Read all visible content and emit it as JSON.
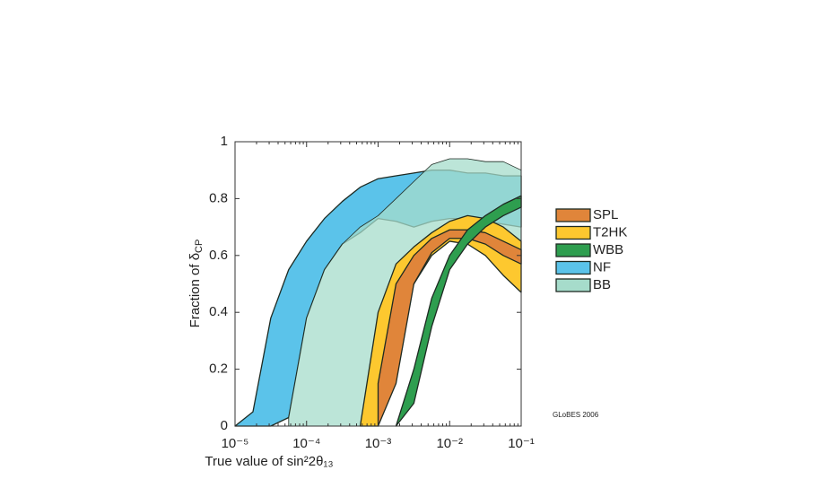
{
  "chart_data": {
    "type": "band",
    "log_x": true,
    "x_label": "True value of sin²2θ₁₃",
    "y_label": "Fraction of δ",
    "y_label_sub": "CP",
    "annotation": "GLoBES 2006",
    "x": [
      1e-05,
      1.78e-05,
      3.16e-05,
      5.62e-05,
      0.0001,
      0.000178,
      0.000316,
      0.000562,
      0.001,
      0.00178,
      0.00316,
      0.00562,
      0.01,
      0.0178,
      0.0316,
      0.0562,
      0.1
    ],
    "xlim": [
      1e-05,
      0.1
    ],
    "xticks": [
      {
        "value": 1e-05,
        "label": "10⁻⁵"
      },
      {
        "value": 0.0001,
        "label": "10⁻⁴"
      },
      {
        "value": 0.001,
        "label": "10⁻³"
      },
      {
        "value": 0.01,
        "label": "10⁻²"
      },
      {
        "value": 0.1,
        "label": "10⁻¹"
      }
    ],
    "ylim": [
      0,
      1
    ],
    "yticks": [
      0,
      0.2,
      0.4,
      0.6,
      0.8,
      1
    ],
    "series": [
      {
        "name": "NF",
        "color": "#5bc3ea",
        "lower": [
          0,
          0,
          0,
          0.03,
          0.38,
          0.55,
          0.64,
          0.68,
          0.73,
          0.72,
          0.7,
          0.72,
          0.73,
          0.73,
          0.72,
          0.71,
          0.7
        ],
        "upper": [
          0,
          0.05,
          0.38,
          0.55,
          0.65,
          0.73,
          0.79,
          0.84,
          0.87,
          0.88,
          0.89,
          0.9,
          0.9,
          0.89,
          0.89,
          0.88,
          0.88
        ]
      },
      {
        "name": "BB",
        "color": "#a6dccb",
        "lower": [
          null,
          null,
          null,
          0,
          0,
          0,
          0,
          0,
          0.02,
          0.5,
          0.6,
          0.62,
          0.65,
          0.66,
          0.65,
          0.63,
          0.62
        ],
        "upper": [
          null,
          null,
          null,
          0.03,
          0.38,
          0.55,
          0.64,
          0.7,
          0.74,
          0.8,
          0.86,
          0.92,
          0.94,
          0.94,
          0.93,
          0.93,
          0.9
        ]
      },
      {
        "name": "T2HK",
        "color": "#fdc82f",
        "lower": [
          null,
          null,
          null,
          null,
          null,
          null,
          null,
          0,
          0,
          0.35,
          0.5,
          0.6,
          0.65,
          0.64,
          0.6,
          0.53,
          0.47
        ],
        "upper": [
          null,
          null,
          null,
          null,
          null,
          null,
          null,
          0,
          0.4,
          0.57,
          0.63,
          0.68,
          0.72,
          0.74,
          0.73,
          0.7,
          0.65
        ]
      },
      {
        "name": "SPL",
        "color": "#e0853a",
        "lower": [
          null,
          null,
          null,
          null,
          null,
          null,
          null,
          null,
          0,
          0.15,
          0.5,
          0.61,
          0.66,
          0.66,
          0.64,
          0.6,
          0.57
        ],
        "upper": [
          null,
          null,
          null,
          null,
          null,
          null,
          null,
          null,
          0.15,
          0.5,
          0.6,
          0.66,
          0.69,
          0.69,
          0.68,
          0.65,
          0.62
        ]
      },
      {
        "name": "WBB",
        "color": "#2e9e4f",
        "lower": [
          null,
          null,
          null,
          null,
          null,
          null,
          null,
          null,
          null,
          0,
          0.08,
          0.35,
          0.55,
          0.64,
          0.7,
          0.74,
          0.77
        ],
        "upper": [
          null,
          null,
          null,
          null,
          null,
          null,
          null,
          null,
          null,
          0,
          0.2,
          0.45,
          0.6,
          0.69,
          0.74,
          0.78,
          0.81
        ]
      }
    ],
    "legend_order": [
      "SPL",
      "T2HK",
      "WBB",
      "NF",
      "BB"
    ]
  }
}
